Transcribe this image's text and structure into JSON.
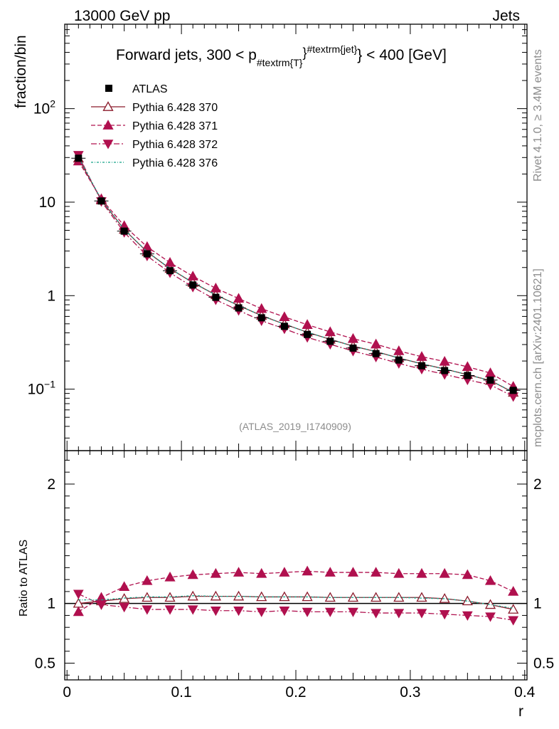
{
  "header": {
    "left": "13000 GeV pp",
    "right": "Jets"
  },
  "side_labels": {
    "rivet": "Rivet 4.1.0, ≥ 3.4M events",
    "mcplots": "mcplots.cern.ch [arXiv:2401.10621]"
  },
  "chart_data": {
    "type": "line",
    "title_main": "Forward jets, 300 < p",
    "title_sub": "#textrm{T}",
    "title_sup": "#textrm{jet}",
    "title_end": "} < 400 [GeV]",
    "watermark": "(ATLAS_2019_I1740909)",
    "xlabel": "r",
    "ylabel": "fraction/bin",
    "ratio_ylabel": "Ratio to ATLAS",
    "xlim": [
      -0.002,
      0.402
    ],
    "ylim": [
      0.022,
      800
    ],
    "yscale": "log",
    "ratio_ylim": [
      0.36,
      2.28
    ],
    "x_ticks": [
      "0",
      "0.1",
      "0.2",
      "0.3",
      "0.4"
    ],
    "y_ticks": [
      "10^-1",
      "1",
      "10",
      "10^2"
    ],
    "ratio_ticks": [
      "0.5",
      "1",
      "2"
    ],
    "x": [
      0.01,
      0.03,
      0.05,
      0.07,
      0.09,
      0.11,
      0.13,
      0.15,
      0.17,
      0.19,
      0.21,
      0.23,
      0.25,
      0.27,
      0.29,
      0.31,
      0.33,
      0.35,
      0.37,
      0.39
    ],
    "data": {
      "name": "ATLAS",
      "values": [
        29.5,
        10.3,
        4.9,
        2.8,
        1.85,
        1.3,
        0.96,
        0.74,
        0.58,
        0.47,
        0.385,
        0.325,
        0.275,
        0.24,
        0.205,
        0.178,
        0.158,
        0.14,
        0.125,
        0.097
      ]
    },
    "series": [
      {
        "name": "Pythia 6.428 370",
        "color": "#8b1a2b",
        "marker": "triangle-up-open",
        "dash": "",
        "ratio": [
          1.0,
          1.02,
          1.04,
          1.05,
          1.05,
          1.06,
          1.06,
          1.06,
          1.055,
          1.055,
          1.055,
          1.05,
          1.05,
          1.05,
          1.05,
          1.05,
          1.04,
          1.02,
          0.99,
          0.95
        ]
      },
      {
        "name": "Pythia 6.428 371",
        "color": "#b0104e",
        "marker": "triangle-up",
        "dash": "6,3",
        "ratio": [
          0.93,
          1.05,
          1.14,
          1.19,
          1.22,
          1.24,
          1.25,
          1.26,
          1.25,
          1.26,
          1.27,
          1.26,
          1.26,
          1.26,
          1.25,
          1.25,
          1.25,
          1.24,
          1.19,
          1.1
        ]
      },
      {
        "name": "Pythia 6.428 372",
        "color": "#b0104e",
        "marker": "triangle-down",
        "dash": "8,3,2,3",
        "ratio": [
          1.08,
          0.99,
          0.97,
          0.95,
          0.95,
          0.95,
          0.94,
          0.94,
          0.93,
          0.94,
          0.93,
          0.93,
          0.93,
          0.92,
          0.92,
          0.92,
          0.91,
          0.9,
          0.89,
          0.86
        ]
      },
      {
        "name": "Pythia 6.428 376",
        "color": "#17a589",
        "marker": "none",
        "dash": "3,2,1,2",
        "ratio": [
          1.03,
          1.03,
          1.045,
          1.055,
          1.055,
          1.065,
          1.06,
          1.06,
          1.055,
          1.055,
          1.055,
          1.05,
          1.05,
          1.05,
          1.05,
          1.045,
          1.04,
          1.02,
          0.99,
          0.96
        ]
      }
    ]
  }
}
